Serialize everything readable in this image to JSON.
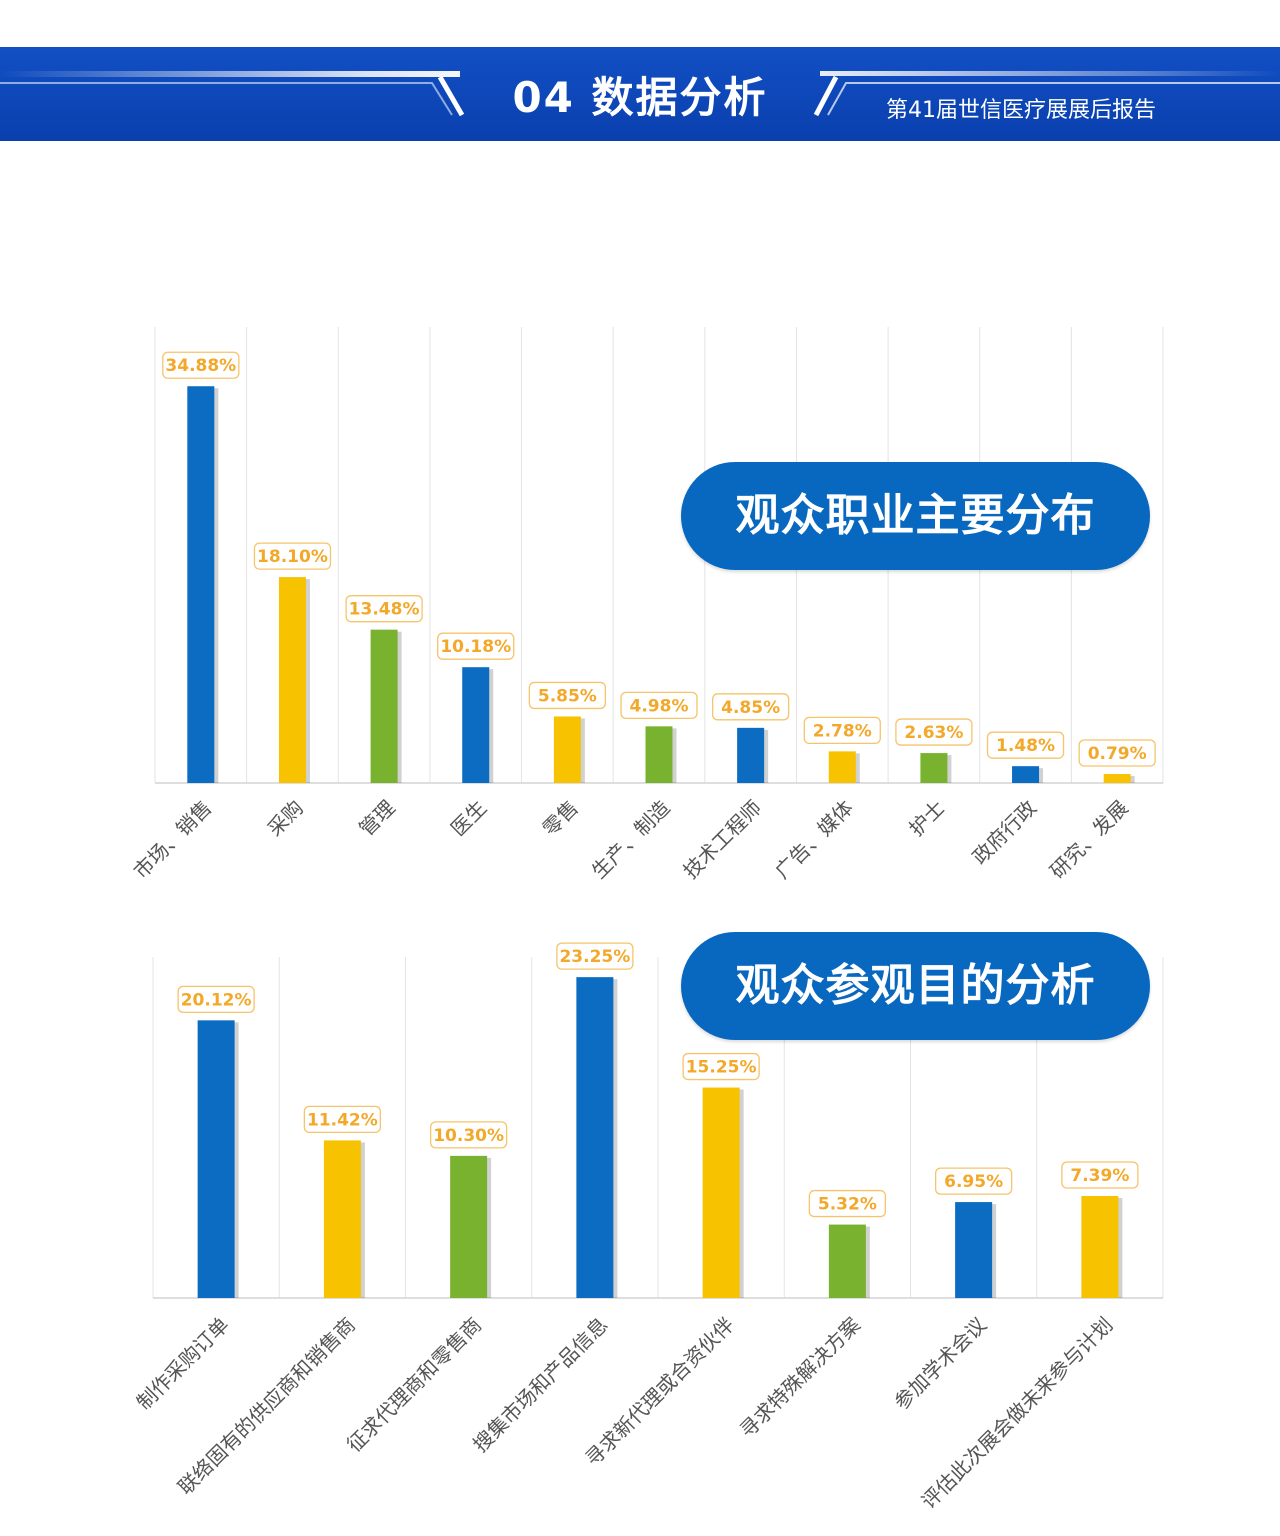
{
  "header": {
    "title": "04 数据分析",
    "subtitle": "第41届世信医疗展展后报告"
  },
  "colors": {
    "blue": "#0b6cc2",
    "yellow": "#f7c200",
    "green": "#79b22f",
    "label_text": "#f3a82a",
    "banner": "#0b44b6"
  },
  "chart_data": [
    {
      "type": "bar",
      "title": "观众职业主要分布",
      "categories": [
        "市场、销售",
        "采购",
        "管理",
        "医生",
        "零售",
        "生产、制造",
        "技术工程师",
        "广告、媒体",
        "护士",
        "政府行政",
        "研究、发展"
      ],
      "values": [
        34.88,
        18.1,
        13.48,
        10.18,
        5.85,
        4.98,
        4.85,
        2.78,
        2.63,
        1.48,
        0.79
      ],
      "data_labels": [
        "34.88%",
        "18.10%",
        "13.48%",
        "10.18%",
        "5.85%",
        "4.98%",
        "4.85%",
        "2.78%",
        "2.63%",
        "1.48%",
        "0.79%"
      ],
      "bar_colors": [
        "blue",
        "yellow",
        "green",
        "blue",
        "yellow",
        "green",
        "blue",
        "yellow",
        "green",
        "blue",
        "yellow"
      ],
      "ylim": [
        0,
        40
      ],
      "grid": "vertical"
    },
    {
      "type": "bar",
      "title": "观众参观目的分析",
      "categories": [
        "制作采购订单",
        "联络固有的供应商和销售商",
        "征求代理商和零售商",
        "搜集市场和产品信息",
        "寻求新代理或合资伙伴",
        "寻求特殊解决方案",
        "参加学术会议",
        "评估此次展会做未来参与计划"
      ],
      "values": [
        20.12,
        11.42,
        10.3,
        23.25,
        15.25,
        5.32,
        6.95,
        7.39
      ],
      "data_labels": [
        "20.12%",
        "11.42%",
        "10.30%",
        "23.25%",
        "15.25%",
        "5.32%",
        "6.95%",
        "7.39%"
      ],
      "bar_colors": [
        "blue",
        "yellow",
        "green",
        "blue",
        "yellow",
        "green",
        "blue",
        "yellow"
      ],
      "ylim": [
        0,
        25
      ],
      "grid": "vertical"
    }
  ]
}
